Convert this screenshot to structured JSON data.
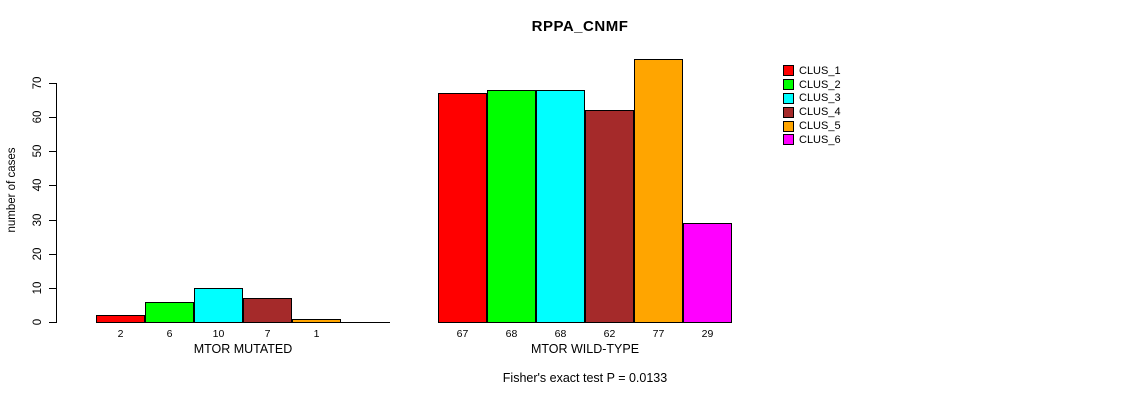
{
  "chart_data": {
    "type": "bar",
    "title": "RPPA_CNMF",
    "ylabel": "number of cases",
    "ylim": [
      0,
      70
    ],
    "yticks": [
      0,
      10,
      20,
      30,
      40,
      50,
      60,
      70
    ],
    "grid": false,
    "legend_position": "right-outside",
    "series": [
      {
        "name": "CLUS_1",
        "color": "#FF0000"
      },
      {
        "name": "CLUS_2",
        "color": "#00FF00"
      },
      {
        "name": "CLUS_3",
        "color": "#00FFFF"
      },
      {
        "name": "CLUS_4",
        "color": "#A52A2A"
      },
      {
        "name": "CLUS_5",
        "color": "#FFA500"
      },
      {
        "name": "CLUS_6",
        "color": "#FF00FF"
      }
    ],
    "groups": [
      {
        "label": "MTOR MUTATED",
        "values": [
          2,
          6,
          10,
          7,
          1,
          0
        ]
      },
      {
        "label": "MTOR WILD-TYPE",
        "values": [
          67,
          68,
          68,
          62,
          77,
          29
        ]
      }
    ],
    "annotation": "Fisher's exact test P = 0.0133"
  }
}
